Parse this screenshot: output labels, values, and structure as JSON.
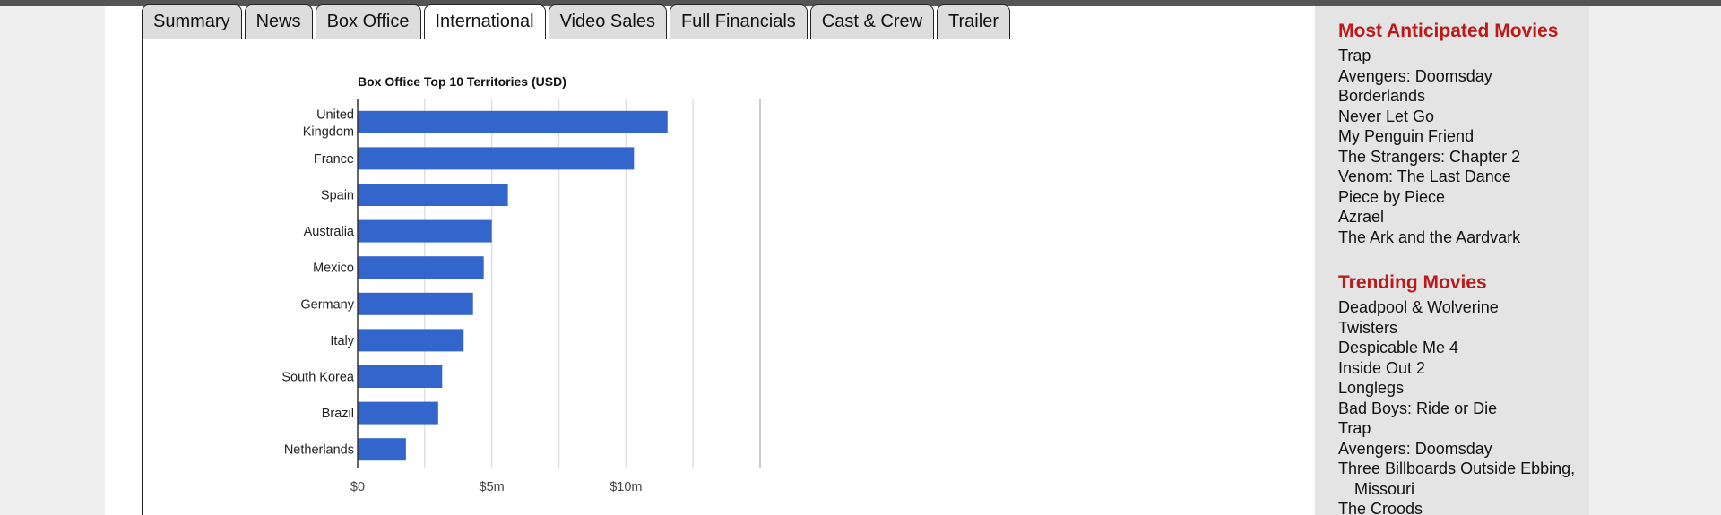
{
  "tabs": [
    {
      "label": "Summary",
      "active": false
    },
    {
      "label": "News",
      "active": false
    },
    {
      "label": "Box Office",
      "active": false
    },
    {
      "label": "International",
      "active": true
    },
    {
      "label": "Video Sales",
      "active": false
    },
    {
      "label": "Full Financials",
      "active": false
    },
    {
      "label": "Cast & Crew",
      "active": false
    },
    {
      "label": "Trailer",
      "active": false
    }
  ],
  "chart_data": {
    "type": "bar",
    "orientation": "horizontal",
    "title": "Box Office Top 10 Territories (USD)",
    "categories": [
      "United Kingdom",
      "France",
      "Spain",
      "Australia",
      "Mexico",
      "Germany",
      "Italy",
      "South Korea",
      "Brazil",
      "Netherlands"
    ],
    "values": [
      11550000,
      10300000,
      5600000,
      5000000,
      4700000,
      4300000,
      3950000,
      3150000,
      3000000,
      1800000
    ],
    "xlim": [
      0,
      15000000
    ],
    "tick_labels": [
      "$0",
      "$5m",
      "$10m"
    ],
    "grid": true,
    "bar_color": "#3366cc"
  },
  "sidebar": {
    "anticipated": {
      "title": "Most Anticipated Movies",
      "items": [
        "Trap",
        "Avengers: Doomsday",
        "Borderlands",
        "Never Let Go",
        "My Penguin Friend",
        "The Strangers: Chapter 2",
        "Venom: The Last Dance",
        "Piece by Piece",
        "Azrael",
        "The Ark and the Aardvark"
      ]
    },
    "trending": {
      "title": "Trending Movies",
      "items": [
        "Deadpool & Wolverine",
        "Twisters",
        "Despicable Me 4",
        "Inside Out 2",
        "Longlegs",
        "Bad Boys: Ride or Die",
        "Trap",
        "Avengers: Doomsday",
        "Three Billboards Outside Ebbing, Missouri",
        "The Croods"
      ]
    }
  },
  "colors": {
    "accent_red": "#bb1a1a",
    "bar_blue": "#3366cc"
  }
}
